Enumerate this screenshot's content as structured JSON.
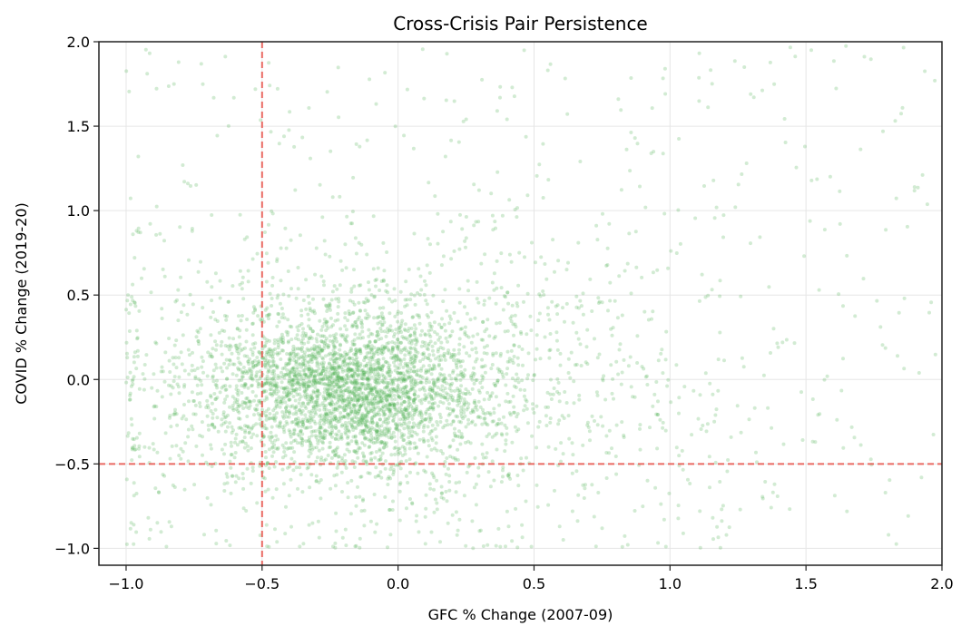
{
  "chart_data": {
    "type": "scatter",
    "title": "Cross-Crisis Pair Persistence",
    "xlabel": "GFC % Change (2007-09)",
    "ylabel": "COVID % Change (2019-20)",
    "xlim": [
      -1.1,
      2.0
    ],
    "ylim": [
      -1.1,
      2.0
    ],
    "xticks": [
      -1.0,
      -0.5,
      0.0,
      0.5,
      1.0,
      1.5,
      2.0
    ],
    "xtick_labels": [
      "−1.0",
      "−0.5",
      "0.0",
      "0.5",
      "1.0",
      "1.5",
      "2.0"
    ],
    "yticks": [
      -1.0,
      -0.5,
      0.0,
      0.5,
      1.0,
      1.5,
      2.0
    ],
    "ytick_labels": [
      "−1.0",
      "−0.5",
      "0.0",
      "0.5",
      "1.0",
      "1.5",
      "2.0"
    ],
    "grid": true,
    "legend": null,
    "point_color": "#4caf50",
    "point_alpha": 0.25,
    "point_count_estimate": 4500,
    "distribution": {
      "core": {
        "x_mean": -0.2,
        "x_sd": 0.25,
        "y_mean": -0.05,
        "y_sd": 0.22,
        "share": 0.55
      },
      "broad": {
        "x_mean": 0.0,
        "x_sd": 0.55,
        "y_mean": 0.0,
        "y_sd": 0.45,
        "share": 0.35
      },
      "tail": {
        "x_range": [
          -1.0,
          2.0
        ],
        "y_range": [
          -1.0,
          2.0
        ],
        "share": 0.1
      }
    },
    "reference_lines": [
      {
        "orientation": "vertical",
        "value": -0.5,
        "color": "#e8524a",
        "style": "dashed"
      },
      {
        "orientation": "horizontal",
        "value": -0.5,
        "color": "#e8524a",
        "style": "dashed"
      }
    ]
  }
}
